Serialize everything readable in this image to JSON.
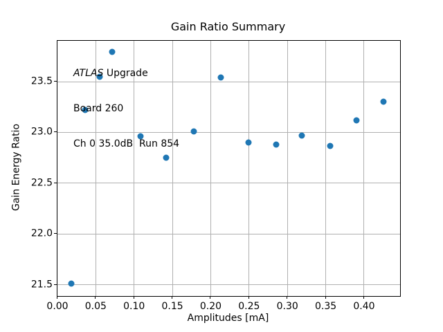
{
  "chart_data": {
    "type": "scatter",
    "title": "Gain Ratio Summary",
    "xlabel": "Amplitudes [mA]",
    "ylabel": "Gain Energy Ratio",
    "xlim": [
      0.0,
      0.447
    ],
    "ylim": [
      21.39,
      23.902
    ],
    "xticks": [
      0.0,
      0.05,
      0.1,
      0.15,
      0.2,
      0.25,
      0.3,
      0.35,
      0.4
    ],
    "yticks": [
      21.5,
      22.0,
      22.5,
      23.0,
      23.5
    ],
    "grid": true,
    "legend_position": "none",
    "marker_color": "#1f77b4",
    "grid_color": "#b0b0b0",
    "series": [
      {
        "name": "gain-energy-ratio-points",
        "x": [
          0.018,
          0.036,
          0.055,
          0.071,
          0.108,
          0.142,
          0.178,
          0.213,
          0.249,
          0.285,
          0.319,
          0.356,
          0.39,
          0.425
        ],
        "y": [
          21.51,
          23.22,
          23.55,
          23.79,
          22.96,
          22.75,
          23.01,
          23.54,
          22.9,
          22.88,
          22.97,
          22.87,
          23.12,
          23.3
        ]
      }
    ],
    "annotation": {
      "line1_italic": "ATLAS",
      "line1_rest": " Upgrade",
      "line2": "Board 260",
      "line3": "Ch 0 35.0dB  Run 854"
    }
  }
}
